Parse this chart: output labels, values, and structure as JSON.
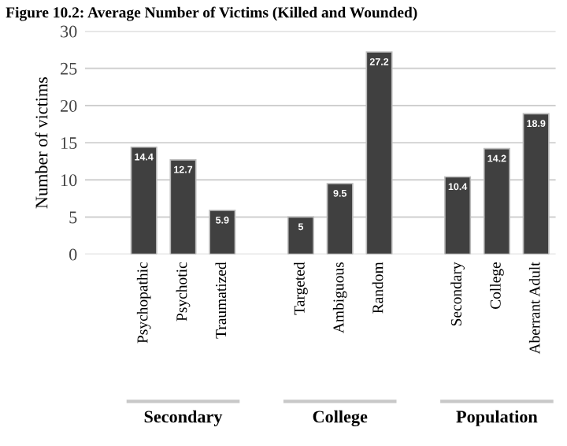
{
  "chart_data": {
    "type": "bar",
    "title": "Figure 10.2: Average Number of Victims (Killed and Wounded)",
    "ylabel": "Number of victims",
    "categories": [
      null,
      "Psychopathic",
      "Psychotic",
      "Traumatized",
      null,
      "Targeted",
      "Ambiguous",
      "Random",
      null,
      "Secondary",
      "College",
      "Aberrant Adult"
    ],
    "values": [
      null,
      14.4,
      12.7,
      5.9,
      null,
      5,
      9.5,
      27.2,
      null,
      10.4,
      14.2,
      18.9
    ],
    "color": "#404040",
    "data_labels": true,
    "ylim": [
      0,
      30
    ],
    "yticks": [
      0,
      5,
      10,
      15,
      20,
      25,
      30
    ],
    "grid": "y",
    "annotations": [
      "Secondary",
      "College",
      "Population"
    ]
  }
}
